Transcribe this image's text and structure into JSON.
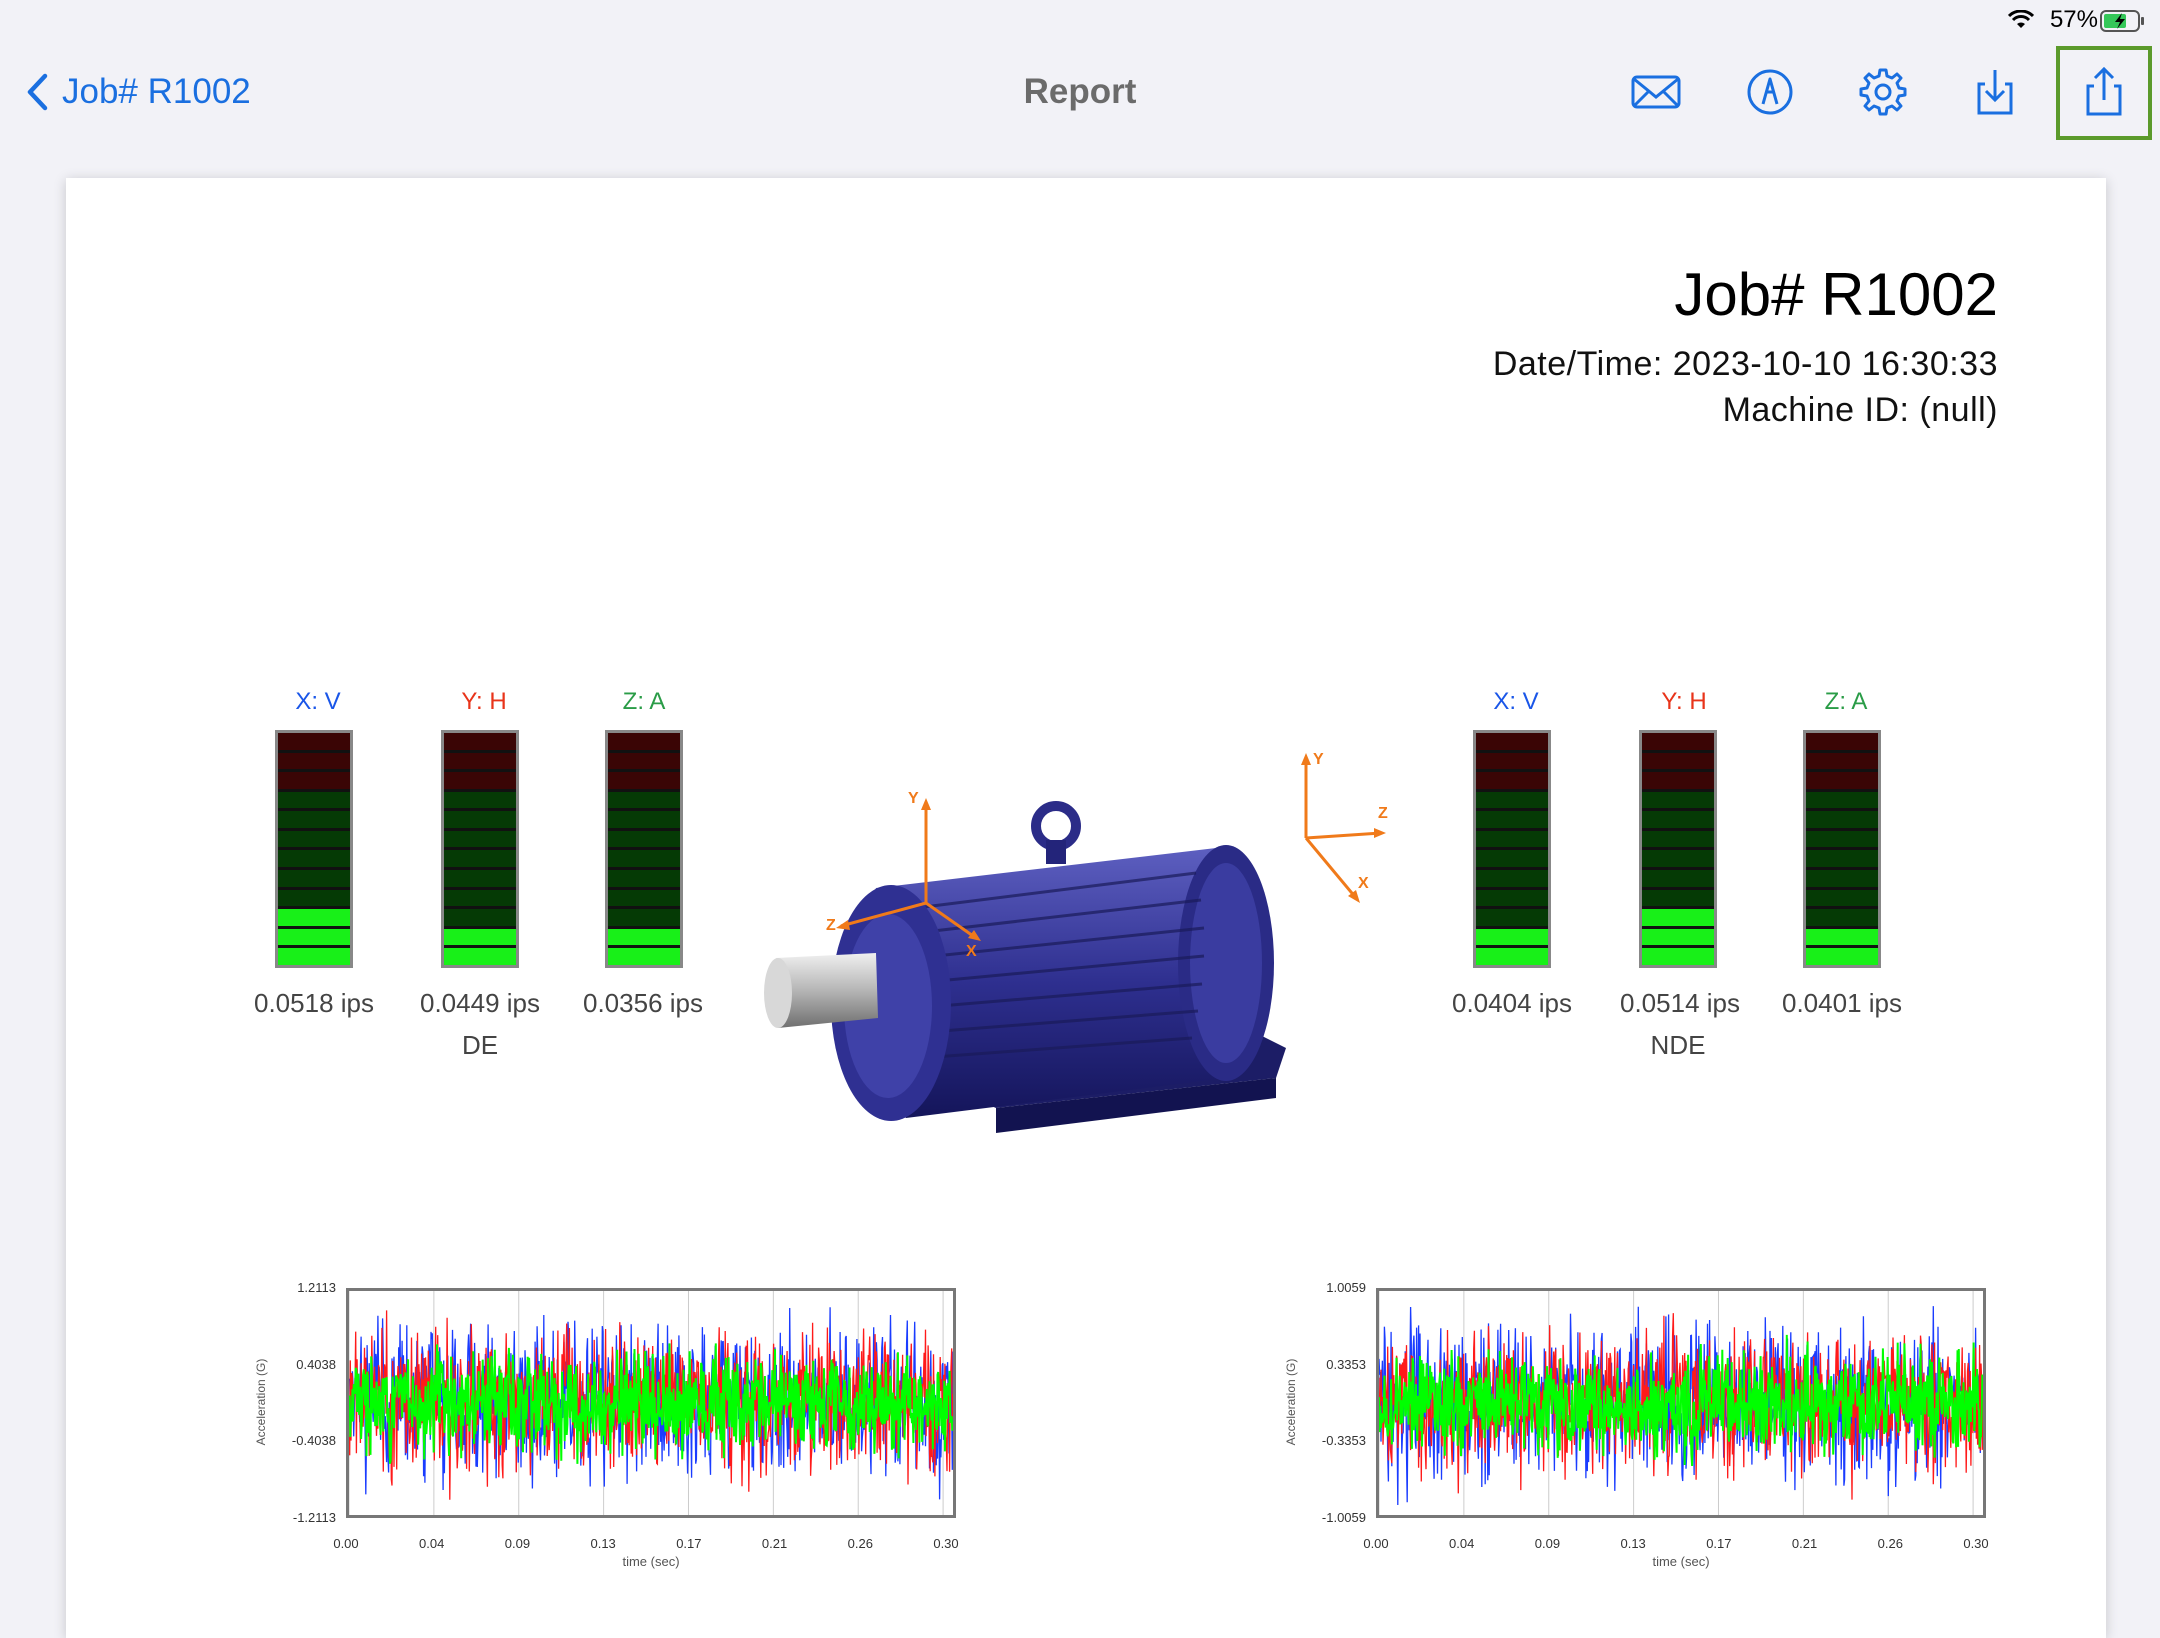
{
  "status_bar": {
    "battery_percent": "57%"
  },
  "nav": {
    "back_label": "Job# R1002",
    "title": "Report"
  },
  "report": {
    "job_title": "Job# R1002",
    "date_time": "Date/Time: 2023-10-10 16:30:33",
    "machine_id": "Machine ID: (null)"
  },
  "de": {
    "label": "DE",
    "axes": [
      {
        "label": "X: V",
        "color": "#1a56e8",
        "reading": "0.0518 ips",
        "level": 3
      },
      {
        "label": "Y: H",
        "color": "#e8341a",
        "reading": "0.0449 ips",
        "level": 2
      },
      {
        "label": "Z: A",
        "color": "#2a9c47",
        "reading": "0.0356 ips",
        "level": 2
      }
    ]
  },
  "nde": {
    "label": "NDE",
    "axes": [
      {
        "label": "X: V",
        "color": "#1a56e8",
        "reading": "0.0404 ips",
        "level": 2
      },
      {
        "label": "Y: H",
        "color": "#e8341a",
        "reading": "0.0514 ips",
        "level": 3
      },
      {
        "label": "Z: A",
        "color": "#2a9c47",
        "reading": "0.0401 ips",
        "level": 2
      }
    ]
  },
  "motor_axis_labels": {
    "y": "Y",
    "z": "Z",
    "x": "X"
  },
  "chart_data": [
    {
      "type": "line",
      "ylabel": "Acceleration (G)",
      "xlabel": "time (sec)",
      "yticks": [
        "1.2113",
        "0.4038",
        "-0.4038",
        "-1.2113"
      ],
      "ylim": [
        -1.2113,
        1.2113
      ],
      "xticks": [
        "0.00",
        "0.04",
        "0.09",
        "0.13",
        "0.17",
        "0.21",
        "0.26",
        "0.30"
      ],
      "xlim": [
        0,
        0.3
      ],
      "series_colors": [
        "#1a3cff",
        "#ff1a1a",
        "#00ff00"
      ],
      "amplitude": [
        0.75,
        0.7,
        0.5
      ]
    },
    {
      "type": "line",
      "ylabel": "Acceleration (G)",
      "xlabel": "time (sec)",
      "yticks": [
        "1.0059",
        "0.3353",
        "-0.3353",
        "-1.0059"
      ],
      "ylim": [
        -1.0059,
        1.0059
      ],
      "xticks": [
        "0.00",
        "0.04",
        "0.09",
        "0.13",
        "0.17",
        "0.21",
        "0.26",
        "0.30"
      ],
      "xlim": [
        0,
        0.3
      ],
      "series_colors": [
        "#1a3cff",
        "#ff1a1a",
        "#00ff00"
      ],
      "amplitude": [
        0.75,
        0.72,
        0.5
      ]
    }
  ]
}
